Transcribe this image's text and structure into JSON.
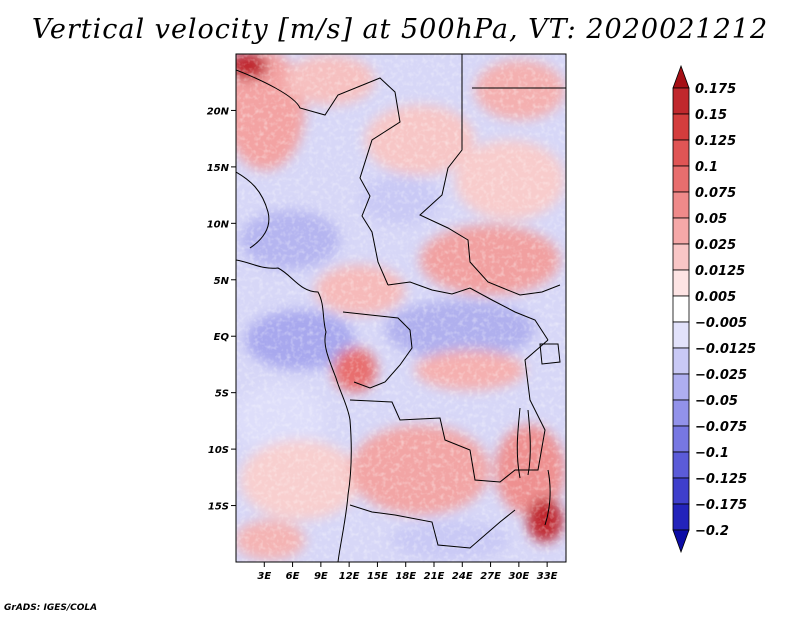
{
  "title": "Vertical velocity [m/s] at 500hPa, VT: 2020021212",
  "credit": "GrADS: IGES/COLA",
  "chart_data": {
    "type": "heatmap",
    "title": "Vertical velocity [m/s] at 500hPa, VT: 2020021212",
    "variable": "Vertical velocity",
    "units": "m/s",
    "level": "500hPa",
    "valid_time": "2020021212",
    "x_axis": {
      "range": [
        0,
        35
      ],
      "ticks": [
        3,
        6,
        9,
        12,
        15,
        18,
        21,
        24,
        27,
        30,
        33
      ],
      "tick_labels": [
        "3E",
        "6E",
        "9E",
        "12E",
        "15E",
        "18E",
        "21E",
        "24E",
        "27E",
        "30E",
        "33E"
      ]
    },
    "y_axis": {
      "range": [
        -20,
        25
      ],
      "ticks": [
        20,
        15,
        10,
        5,
        0,
        -5,
        -10,
        -15
      ],
      "tick_labels": [
        "20N",
        "15N",
        "10N",
        "5N",
        "EQ",
        "5S",
        "10S",
        "15S"
      ]
    },
    "colorbar": {
      "orientation": "vertical",
      "levels": [
        0.175,
        0.15,
        0.125,
        0.1,
        0.075,
        0.05,
        0.025,
        0.0125,
        0.005,
        -0.005,
        -0.0125,
        -0.025,
        -0.05,
        -0.075,
        -0.1,
        -0.125,
        -0.175,
        -0.2
      ],
      "labels": [
        "0.175",
        "0.15",
        "0.125",
        "0.1",
        "0.075",
        "0.05",
        "0.025",
        "0.0125",
        "0.005",
        "−0.005",
        "−0.0125",
        "−0.025",
        "−0.05",
        "−0.075",
        "−0.1",
        "−0.125",
        "−0.175",
        "−0.2"
      ],
      "colors": [
        "#a50f15",
        "#c0282d",
        "#d43d3d",
        "#e05555",
        "#e86e6e",
        "#ef8a8a",
        "#f5a8a8",
        "#f9c6c6",
        "#fde4e4",
        "#ffffff",
        "#e2e2fb",
        "#c9c9f5",
        "#aeaef0",
        "#9292ea",
        "#7777e2",
        "#5b5bd8",
        "#3f3fcc",
        "#2323bb",
        "#0c0ca6"
      ]
    }
  }
}
